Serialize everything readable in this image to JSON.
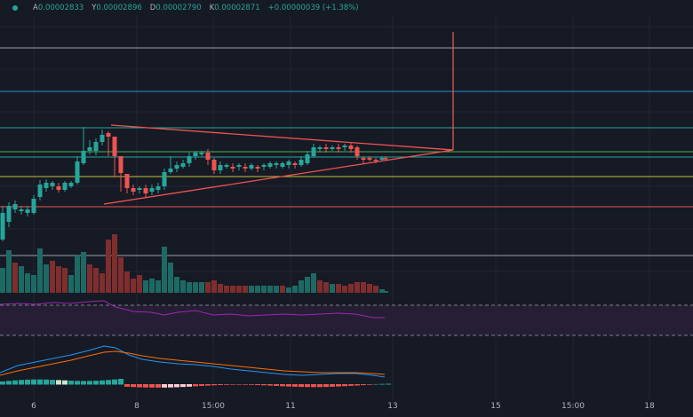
{
  "header": {
    "open_label": "A",
    "open_value": "0.00002833",
    "high_label": "Y",
    "high_value": "0.00002896",
    "low_label": "D",
    "low_value": "0.00002790",
    "close_label": "K",
    "close_value": "0.00002871",
    "change_value": "+0.00000039 (+1.38%)"
  },
  "time_axis": {
    "labels": [
      "6",
      "8",
      "15:00",
      "11",
      "13",
      "15",
      "15:00",
      "18"
    ]
  },
  "colors": {
    "background": "#161a25",
    "up": "#26a69a",
    "down": "#ef5350",
    "volume_up": "#1d6a64",
    "volume_down": "#7f2e2e",
    "rsi": "#9c27b0",
    "macd_line": "#2196f3",
    "signal_line": "#ff6d00",
    "triangle": "#ef5350"
  },
  "chart_data": {
    "type": "candlestick",
    "triangle_pattern": true,
    "indicators": [
      "volume",
      "rsi",
      "macd"
    ]
  }
}
